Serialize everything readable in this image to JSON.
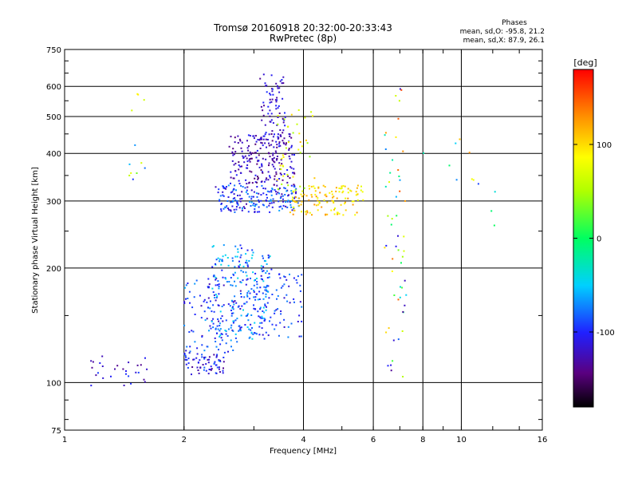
{
  "chart_data": {
    "type": "scatter",
    "title": "Tromsø 20160918 20:32:00-20:33:43",
    "subtitle": "RwPretec (8p)",
    "stats": {
      "header": "Phases",
      "line1": "mean, sd,O: -95.8, 21.2",
      "line2": "mean, sd,X:  87.9, 26.1"
    },
    "xlabel": "Frequency [MHz]",
    "ylabel": "Stationary phase Virtual Height [km]",
    "xscale": "log",
    "yscale": "log",
    "xlim": [
      1,
      16
    ],
    "ylim": [
      75,
      750
    ],
    "xticks": [
      1,
      2,
      4,
      6,
      8,
      10,
      16
    ],
    "xtick_labels": [
      "1",
      "2",
      "4",
      "6",
      "8",
      "10",
      "16"
    ],
    "yticks": [
      75,
      100,
      200,
      300,
      400,
      500,
      600,
      750
    ],
    "ytick_labels": [
      "75",
      "100",
      "200",
      "300",
      "400",
      "500",
      "600",
      "750"
    ],
    "grid": true,
    "colorbar": {
      "label": "[deg]",
      "range": [
        -180,
        180
      ],
      "ticks": [
        100,
        0,
        -100
      ],
      "tick_labels": [
        "100",
        "0",
        "-100"
      ]
    },
    "clusters": [
      {
        "fmin": 2.0,
        "fmax": 2.55,
        "hmin": 105,
        "hmax": 120,
        "pmin": -140,
        "pmax": -80,
        "n": 70
      },
      {
        "fmin": 2.0,
        "fmax": 2.8,
        "hmin": 120,
        "hmax": 190,
        "pmin": -130,
        "pmax": -60,
        "n": 110
      },
      {
        "fmin": 2.35,
        "fmax": 3.3,
        "hmin": 130,
        "hmax": 230,
        "pmin": -110,
        "pmax": -40,
        "n": 230
      },
      {
        "fmin": 3.0,
        "fmax": 4.0,
        "hmin": 130,
        "hmax": 200,
        "pmin": -120,
        "pmax": -70,
        "n": 80
      },
      {
        "fmin": 2.4,
        "fmax": 3.9,
        "hmin": 280,
        "hmax": 330,
        "pmin": -130,
        "pmax": -60,
        "n": 190
      },
      {
        "fmin": 2.6,
        "fmax": 3.8,
        "hmin": 330,
        "hmax": 450,
        "pmin": -150,
        "pmax": -100,
        "n": 200
      },
      {
        "fmin": 3.1,
        "fmax": 3.6,
        "hmin": 400,
        "hmax": 650,
        "pmin": -140,
        "pmax": -95,
        "n": 90
      },
      {
        "fmin": 3.7,
        "fmax": 5.7,
        "hmin": 275,
        "hmax": 330,
        "pmin": 70,
        "pmax": 130,
        "n": 120
      },
      {
        "fmin": 3.4,
        "fmax": 4.3,
        "hmin": 320,
        "hmax": 520,
        "pmin": 40,
        "pmax": 120,
        "n": 40
      },
      {
        "fmin": 1.15,
        "fmax": 1.65,
        "hmin": 98,
        "hmax": 118,
        "pmin": -140,
        "pmax": -90,
        "n": 28
      },
      {
        "fmin": 1.45,
        "fmax": 1.6,
        "hmin": 330,
        "hmax": 600,
        "pmin": -120,
        "pmax": 130,
        "n": 12
      },
      {
        "fmin": 6.4,
        "fmax": 7.3,
        "hmin": 100,
        "hmax": 600,
        "pmin": -140,
        "pmax": 170,
        "n": 55
      },
      {
        "fmin": 7.8,
        "fmax": 13.0,
        "hmin": 250,
        "hmax": 460,
        "pmin": -100,
        "pmax": 160,
        "n": 12
      }
    ]
  }
}
